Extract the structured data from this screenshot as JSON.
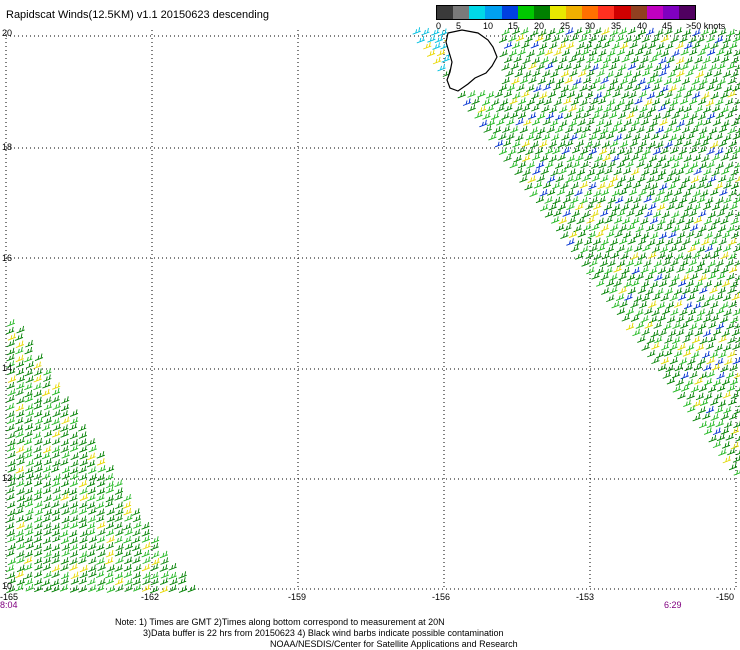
{
  "title": "Rapidscat Winds(12.5KM) v1.1 20150623 descending",
  "legend": {
    "colors": [
      "#3a3a3a",
      "#7a7a7a",
      "#00d8e8",
      "#00a0f0",
      "#0040e0",
      "#00c800",
      "#008000",
      "#e8e800",
      "#f0b000",
      "#ff7000",
      "#ff3020",
      "#d00000",
      "#904020",
      "#c000c0",
      "#8000c0",
      "#500060"
    ],
    "labels": [
      "0",
      "5",
      "10",
      "15",
      "20",
      "25",
      "30",
      "35",
      "40",
      "45",
      ">50 knots"
    ]
  },
  "axes": {
    "lat_labels": [
      "20",
      "18",
      "16",
      "14",
      "12",
      "10"
    ],
    "lon_labels": [
      "-165",
      "-162",
      "-159",
      "-156",
      "-153",
      "-150"
    ]
  },
  "times": {
    "left": "8:04",
    "right": "6:29"
  },
  "notes": {
    "line1": "Note: 1) Times are GMT 2)Times along bottom correspond to measurement at 20N",
    "line2": "3)Data buffer is 22 hrs from 20150623 4) Black wind barbs indicate possible contamination",
    "line3": "NOAA/NESDIS/Center for Satellite Applications and Research"
  }
}
